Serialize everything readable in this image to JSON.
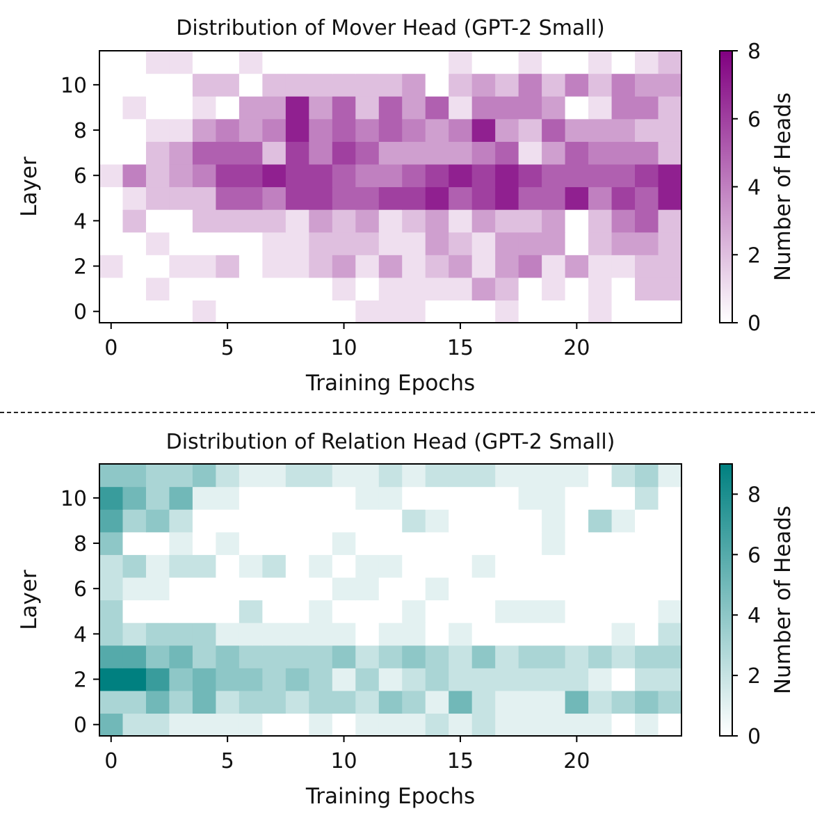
{
  "chart_data": [
    {
      "type": "heatmap",
      "title": "Distribution of Mover Head (GPT-2 Small)",
      "xlabel": "Training Epochs",
      "ylabel": "Layer",
      "colorbar_label": "Number of Heads",
      "x_ticks": [
        0,
        5,
        10,
        15,
        20
      ],
      "y_ticks": [
        0,
        2,
        4,
        6,
        8,
        10
      ],
      "colorbar_ticks": [
        0,
        2,
        4,
        6,
        8
      ],
      "vmin": 0,
      "vmax": 8,
      "cmap": [
        "#ffffff",
        "#800080"
      ],
      "x_range": [
        0,
        24
      ],
      "y_range": [
        0,
        11
      ],
      "values": [
        [
          0,
          0,
          0,
          0,
          1,
          0,
          0,
          0,
          0,
          0,
          0,
          1,
          1,
          1,
          0,
          0,
          0,
          1,
          0,
          0,
          0,
          1,
          0,
          0,
          0
        ],
        [
          0,
          0,
          1,
          0,
          0,
          0,
          0,
          0,
          0,
          0,
          1,
          0,
          1,
          1,
          1,
          1,
          3,
          2,
          0,
          1,
          0,
          1,
          0,
          2,
          2
        ],
        [
          1,
          0,
          0,
          1,
          1,
          2,
          0,
          1,
          1,
          2,
          3,
          1,
          3,
          1,
          2,
          3,
          1,
          3,
          4,
          1,
          3,
          1,
          1,
          2,
          2
        ],
        [
          0,
          0,
          1,
          0,
          0,
          0,
          0,
          1,
          1,
          2,
          2,
          2,
          1,
          1,
          3,
          2,
          1,
          3,
          3,
          3,
          0,
          2,
          3,
          3,
          2
        ],
        [
          0,
          2,
          0,
          0,
          2,
          2,
          2,
          2,
          1,
          3,
          2,
          3,
          1,
          2,
          3,
          1,
          3,
          2,
          2,
          3,
          0,
          2,
          4,
          5,
          2
        ],
        [
          0,
          1,
          2,
          2,
          2,
          5,
          5,
          4,
          6,
          6,
          5,
          5,
          6,
          6,
          7,
          5,
          6,
          7,
          5,
          5,
          7,
          4,
          6,
          5,
          7
        ],
        [
          1,
          4,
          2,
          3,
          4,
          6,
          6,
          7,
          6,
          6,
          5,
          4,
          4,
          5,
          6,
          7,
          6,
          7,
          6,
          5,
          5,
          5,
          5,
          6,
          7
        ],
        [
          0,
          0,
          2,
          3,
          5,
          5,
          5,
          2,
          6,
          4,
          6,
          5,
          3,
          3,
          3,
          3,
          4,
          5,
          1,
          3,
          5,
          4,
          4,
          4,
          2
        ],
        [
          0,
          0,
          1,
          1,
          3,
          4,
          3,
          4,
          7,
          4,
          5,
          4,
          5,
          4,
          3,
          4,
          7,
          3,
          2,
          5,
          3,
          3,
          3,
          2,
          2
        ],
        [
          0,
          1,
          0,
          0,
          1,
          0,
          3,
          3,
          7,
          3,
          5,
          2,
          5,
          3,
          5,
          1,
          4,
          4,
          4,
          3,
          0,
          1,
          4,
          4,
          2
        ],
        [
          0,
          0,
          0,
          0,
          2,
          2,
          0,
          2,
          2,
          2,
          2,
          2,
          2,
          3,
          0,
          2,
          3,
          2,
          4,
          2,
          4,
          2,
          4,
          3,
          3
        ],
        [
          0,
          0,
          1,
          1,
          0,
          0,
          1,
          0,
          0,
          0,
          0,
          0,
          0,
          0,
          0,
          1,
          0,
          0,
          1,
          0,
          0,
          1,
          0,
          1,
          2
        ]
      ]
    },
    {
      "type": "heatmap",
      "title": "Distribution of Relation Head (GPT-2 Small)",
      "xlabel": "Training Epochs",
      "ylabel": "Layer",
      "colorbar_label": "Number of Heads",
      "x_ticks": [
        0,
        5,
        10,
        15,
        20
      ],
      "y_ticks": [
        0,
        2,
        4,
        6,
        8,
        10
      ],
      "colorbar_ticks": [
        0,
        2,
        4,
        6,
        8
      ],
      "vmin": 0,
      "vmax": 9,
      "cmap": [
        "#ffffff",
        "#008080"
      ],
      "x_range": [
        0,
        24
      ],
      "y_range": [
        0,
        11
      ],
      "values": [
        [
          5,
          2,
          2,
          1,
          1,
          1,
          1,
          0,
          0,
          1,
          0,
          1,
          1,
          1,
          2,
          1,
          2,
          1,
          1,
          1,
          1,
          1,
          0,
          1,
          0
        ],
        [
          3,
          3,
          5,
          3,
          5,
          2,
          3,
          3,
          2,
          3,
          3,
          2,
          4,
          3,
          1,
          5,
          2,
          1,
          1,
          1,
          5,
          2,
          3,
          4,
          3
        ],
        [
          9,
          9,
          7,
          4,
          5,
          4,
          4,
          3,
          4,
          3,
          1,
          3,
          1,
          2,
          3,
          2,
          2,
          2,
          2,
          2,
          2,
          1,
          0,
          2,
          2
        ],
        [
          6,
          6,
          4,
          5,
          3,
          4,
          3,
          3,
          3,
          3,
          4,
          2,
          3,
          4,
          3,
          2,
          4,
          2,
          3,
          3,
          2,
          3,
          2,
          3,
          3
        ],
        [
          3,
          2,
          3,
          3,
          3,
          1,
          1,
          1,
          1,
          1,
          1,
          0,
          1,
          1,
          0,
          1,
          0,
          0,
          0,
          0,
          0,
          0,
          1,
          0,
          2
        ],
        [
          3,
          0,
          0,
          0,
          0,
          0,
          2,
          0,
          0,
          1,
          0,
          0,
          0,
          1,
          0,
          0,
          0,
          1,
          1,
          1,
          0,
          0,
          0,
          0,
          1
        ],
        [
          2,
          1,
          1,
          0,
          0,
          0,
          0,
          0,
          0,
          0,
          1,
          1,
          0,
          0,
          1,
          0,
          0,
          0,
          0,
          0,
          0,
          0,
          0,
          0,
          0
        ],
        [
          2,
          3,
          1,
          2,
          2,
          0,
          1,
          2,
          0,
          1,
          0,
          1,
          1,
          0,
          0,
          0,
          1,
          0,
          0,
          0,
          0,
          0,
          0,
          0,
          0
        ],
        [
          4,
          0,
          0,
          1,
          0,
          1,
          0,
          0,
          0,
          0,
          1,
          0,
          0,
          0,
          0,
          0,
          0,
          0,
          0,
          1,
          0,
          0,
          0,
          0,
          0
        ],
        [
          6,
          3,
          4,
          2,
          0,
          0,
          0,
          0,
          0,
          0,
          0,
          0,
          0,
          2,
          1,
          0,
          0,
          0,
          0,
          1,
          0,
          3,
          1,
          0,
          0
        ],
        [
          7,
          5,
          3,
          5,
          1,
          1,
          0,
          0,
          0,
          0,
          0,
          1,
          1,
          0,
          0,
          0,
          0,
          0,
          1,
          1,
          0,
          0,
          0,
          2,
          0
        ],
        [
          4,
          4,
          3,
          3,
          4,
          2,
          1,
          1,
          2,
          2,
          1,
          1,
          2,
          1,
          2,
          2,
          2,
          1,
          1,
          1,
          1,
          0,
          2,
          3,
          1
        ]
      ]
    }
  ]
}
